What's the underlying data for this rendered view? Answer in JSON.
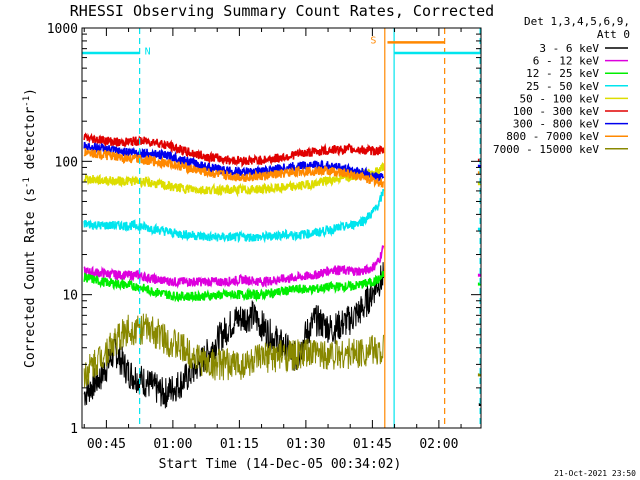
{
  "chart_data": {
    "type": "line",
    "title": "RHESSI Observing Summary Count Rates, Corrected",
    "xlabel": "Start Time (14-Dec-05 00:34:02)",
    "ylabel_main": "Corrected Count Rate (s",
    "ylabel_sup1": "-1",
    "ylabel_mid": " detector",
    "ylabel_sup2": "-1",
    "ylabel_end": ")",
    "y_scale": "log",
    "ylim": [
      1,
      1000
    ],
    "xlim_minutes": [
      39.5,
      129.5
    ],
    "x_ticks": [
      {
        "t": 45,
        "label": "00:45"
      },
      {
        "t": 60,
        "label": "01:00"
      },
      {
        "t": 75,
        "label": "01:15"
      },
      {
        "t": 90,
        "label": "01:30"
      },
      {
        "t": 105,
        "label": "01:45"
      },
      {
        "t": 120,
        "label": "02:00"
      }
    ],
    "y_ticks": [
      {
        "v": 1,
        "label": "1"
      },
      {
        "v": 10,
        "label": "10"
      },
      {
        "v": 100,
        "label": "100"
      },
      {
        "v": 1000,
        "label": "1000"
      }
    ],
    "legend_header": [
      "Det 1,3,4,5,6,9,",
      "Att 0"
    ],
    "series": [
      {
        "name": "3 - 6 keV",
        "color": "#000000",
        "points": [
          [
            40,
            1.8
          ],
          [
            44,
            2.5
          ],
          [
            47,
            3.8
          ],
          [
            50,
            2.6
          ],
          [
            54,
            2.2
          ],
          [
            58,
            1.8
          ],
          [
            62,
            2.2
          ],
          [
            66,
            3
          ],
          [
            70,
            4.5
          ],
          [
            74,
            6.5
          ],
          [
            78,
            7
          ],
          [
            82,
            5
          ],
          [
            86,
            3.8
          ],
          [
            88,
            3.3
          ],
          [
            90,
            5
          ],
          [
            92,
            6.5
          ],
          [
            96,
            5.5
          ],
          [
            100,
            6.5
          ],
          [
            103,
            8
          ],
          [
            106,
            12
          ],
          [
            107.5,
            13.5
          ]
        ],
        "seg2": [
          [
            129,
            1.5
          ],
          [
            129.5,
            1.5
          ]
        ]
      },
      {
        "name": "6 - 12 keV",
        "color": "#dd00dd",
        "points": [
          [
            40,
            15
          ],
          [
            44,
            14.5
          ],
          [
            48,
            14
          ],
          [
            52,
            14
          ],
          [
            56,
            13
          ],
          [
            60,
            12.5
          ],
          [
            64,
            12.5
          ],
          [
            68,
            12.5
          ],
          [
            72,
            12.5
          ],
          [
            76,
            13
          ],
          [
            80,
            12.5
          ],
          [
            84,
            13
          ],
          [
            88,
            13.5
          ],
          [
            92,
            14
          ],
          [
            96,
            15.5
          ],
          [
            100,
            15
          ],
          [
            103,
            15
          ],
          [
            105,
            16
          ],
          [
            106.5,
            18
          ],
          [
            107.5,
            23
          ]
        ],
        "seg2": [
          [
            128.8,
            14
          ],
          [
            129.5,
            14
          ]
        ]
      },
      {
        "name": "12 - 25 keV",
        "color": "#00ee00",
        "points": [
          [
            40,
            13.5
          ],
          [
            44,
            12.5
          ],
          [
            48,
            12
          ],
          [
            52,
            11.5
          ],
          [
            56,
            10.5
          ],
          [
            60,
            9.8
          ],
          [
            64,
            9.7
          ],
          [
            68,
            9.8
          ],
          [
            72,
            10
          ],
          [
            76,
            10
          ],
          [
            80,
            10
          ],
          [
            84,
            10.5
          ],
          [
            88,
            11
          ],
          [
            92,
            11
          ],
          [
            96,
            11.5
          ],
          [
            100,
            11.5
          ],
          [
            103,
            12
          ],
          [
            105,
            12.5
          ],
          [
            106.5,
            13
          ],
          [
            107.5,
            14
          ]
        ],
        "seg2": [
          [
            128.8,
            12
          ],
          [
            129.5,
            12
          ]
        ]
      },
      {
        "name": "25 - 50 keV",
        "color": "#00e5ee",
        "points": [
          [
            40,
            34
          ],
          [
            44,
            33
          ],
          [
            48,
            33
          ],
          [
            52,
            33
          ],
          [
            56,
            31
          ],
          [
            60,
            29
          ],
          [
            64,
            28
          ],
          [
            68,
            27
          ],
          [
            72,
            27
          ],
          [
            76,
            27
          ],
          [
            80,
            27
          ],
          [
            84,
            28
          ],
          [
            88,
            28
          ],
          [
            92,
            29
          ],
          [
            96,
            31
          ],
          [
            100,
            33
          ],
          [
            103,
            36
          ],
          [
            105,
            41
          ],
          [
            106.5,
            48
          ],
          [
            107.5,
            60
          ]
        ],
        "seg2": [
          [
            128.8,
            31
          ],
          [
            129.5,
            31
          ]
        ]
      },
      {
        "name": "50 - 100 keV",
        "color": "#dddd00",
        "points": [
          [
            40,
            74
          ],
          [
            44,
            72
          ],
          [
            48,
            71
          ],
          [
            52,
            71
          ],
          [
            56,
            68
          ],
          [
            60,
            64
          ],
          [
            64,
            62
          ],
          [
            68,
            61
          ],
          [
            72,
            61
          ],
          [
            76,
            61
          ],
          [
            80,
            62
          ],
          [
            84,
            63
          ],
          [
            88,
            65
          ],
          [
            92,
            68
          ],
          [
            96,
            73
          ],
          [
            100,
            78
          ],
          [
            103,
            81
          ],
          [
            105,
            82
          ],
          [
            106.5,
            85
          ],
          [
            107.5,
            92
          ]
        ],
        "seg2": [
          [
            128.8,
            68
          ],
          [
            129.5,
            68
          ]
        ]
      },
      {
        "name": "100 - 300 keV",
        "color": "#e00000",
        "points": [
          [
            40,
            150
          ],
          [
            44,
            145
          ],
          [
            48,
            138
          ],
          [
            52,
            142
          ],
          [
            56,
            140
          ],
          [
            60,
            128
          ],
          [
            64,
            115
          ],
          [
            68,
            108
          ],
          [
            72,
            103
          ],
          [
            76,
            101
          ],
          [
            80,
            102
          ],
          [
            84,
            106
          ],
          [
            88,
            113
          ],
          [
            92,
            118
          ],
          [
            96,
            122
          ],
          [
            100,
            123
          ],
          [
            103,
            122
          ],
          [
            105,
            120
          ],
          [
            107.5,
            120
          ]
        ],
        "seg2": [
          [
            128.8,
            102
          ],
          [
            129.5,
            102
          ]
        ]
      },
      {
        "name": "300 - 800 keV",
        "color": "#0000ee",
        "points": [
          [
            40,
            130
          ],
          [
            44,
            125
          ],
          [
            48,
            118
          ],
          [
            52,
            117
          ],
          [
            56,
            113
          ],
          [
            60,
            108
          ],
          [
            64,
            98
          ],
          [
            68,
            90
          ],
          [
            72,
            85
          ],
          [
            76,
            83
          ],
          [
            80,
            84
          ],
          [
            84,
            88
          ],
          [
            88,
            92
          ],
          [
            92,
            94
          ],
          [
            96,
            92
          ],
          [
            100,
            87
          ],
          [
            103,
            82
          ],
          [
            105,
            78
          ],
          [
            107.5,
            75
          ]
        ],
        "seg2": [
          [
            128.8,
            92
          ],
          [
            129.5,
            92
          ]
        ]
      },
      {
        "name": "800 - 7000 keV",
        "color": "#ff8800",
        "points": [
          [
            40,
            118
          ],
          [
            44,
            112
          ],
          [
            48,
            106
          ],
          [
            52,
            104
          ],
          [
            56,
            100
          ],
          [
            60,
            95
          ],
          [
            64,
            88
          ],
          [
            68,
            82
          ],
          [
            72,
            78
          ],
          [
            76,
            76
          ],
          [
            80,
            77
          ],
          [
            84,
            80
          ],
          [
            88,
            84
          ],
          [
            92,
            85
          ],
          [
            96,
            84
          ],
          [
            100,
            80
          ],
          [
            103,
            76
          ],
          [
            105,
            72
          ],
          [
            107.5,
            68
          ]
        ],
        "seg2": [
          [
            128.8,
            82
          ],
          [
            129.5,
            82
          ]
        ]
      },
      {
        "name": "7000 - 15000 keV",
        "color": "#888800",
        "points": [
          [
            40,
            2.5
          ],
          [
            44,
            3.5
          ],
          [
            47,
            4.5
          ],
          [
            50,
            5.5
          ],
          [
            54,
            5.5
          ],
          [
            57,
            5
          ],
          [
            60,
            4.3
          ],
          [
            64,
            3.6
          ],
          [
            68,
            3
          ],
          [
            72,
            3
          ],
          [
            76,
            3
          ],
          [
            80,
            3.3
          ],
          [
            84,
            3.5
          ],
          [
            88,
            3.5
          ],
          [
            92,
            3.6
          ],
          [
            96,
            3.6
          ],
          [
            100,
            3.6
          ],
          [
            104,
            3.8
          ],
          [
            107.5,
            3.8
          ]
        ],
        "seg2": [
          [
            128.8,
            2.5
          ],
          [
            129.5,
            2.5
          ]
        ]
      }
    ],
    "annotations": [
      {
        "label": "N",
        "t": 52.5,
        "color": "#00e5ee"
      },
      {
        "label": "S",
        "t": 106.8,
        "color": "#ff8800"
      }
    ],
    "flag_bars": [
      {
        "t0": 39.5,
        "t1": 52.5,
        "value": 650,
        "color": "#00e5ee"
      },
      {
        "t0": 108.4,
        "t1": 121.3,
        "value": 780,
        "color": "#ff8800"
      },
      {
        "t0": 110.0,
        "t1": 129.3,
        "value": 650,
        "color": "#00e5ee"
      }
    ],
    "vlines": [
      {
        "t": 52.5,
        "color": "#00e5ee",
        "style": "dashed"
      },
      {
        "t": 107.8,
        "color": "#ff8800",
        "style": "solid"
      },
      {
        "t": 109.9,
        "color": "#00e5ee",
        "style": "solid"
      },
      {
        "t": 121.3,
        "color": "#ff8800",
        "style": "dashed"
      },
      {
        "t": 129.3,
        "color": "#00e5ee",
        "style": "dashed"
      }
    ],
    "footer": "21-Oct-2021 23:50"
  }
}
